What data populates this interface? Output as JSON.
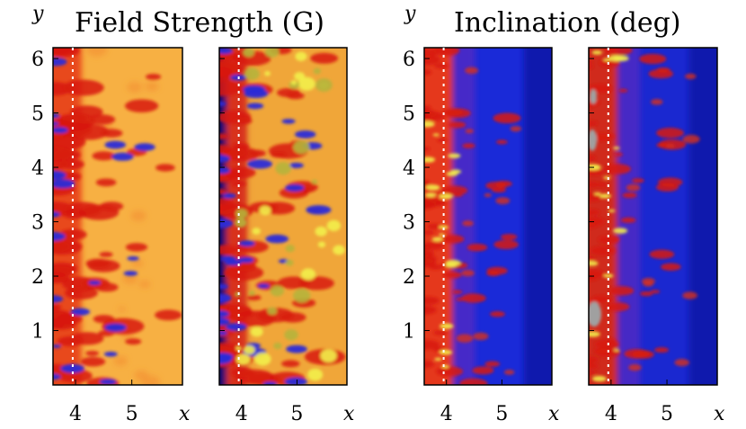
{
  "chart_data": {
    "type": "heatmap",
    "title_left": "Field Strength (G)",
    "title_right": "Inclination (deg)",
    "xlabel": "x",
    "ylabel": "y",
    "x_ticks": [
      "4",
      "5"
    ],
    "y_ticks": [
      "1",
      "2",
      "3",
      "4",
      "5",
      "6"
    ],
    "xlim": [
      3.6,
      5.9
    ],
    "ylim": [
      0,
      6.2
    ],
    "dashed_line_x": 3.95,
    "panels": [
      {
        "name": "field-strength-observed",
        "quantity": "field_strength",
        "base_color": "#f7b043",
        "left_color": "#e83a1a"
      },
      {
        "name": "field-strength-model",
        "quantity": "field_strength",
        "base_color": "#f0a23a",
        "left_color": "#1a1aa0"
      },
      {
        "name": "inclination-observed",
        "quantity": "inclination",
        "base_color": "#1a2ad8",
        "left_color": "#e5381b"
      },
      {
        "name": "inclination-model",
        "quantity": "inclination",
        "base_color": "#1a28d0",
        "left_color": "#d02a1a"
      }
    ],
    "colors": {
      "blue_dark": "#0a0a6e",
      "blue": "#2a2ad8",
      "red": "#d81a12",
      "orange": "#f7a73a",
      "yellow": "#f2f04a",
      "olive": "#b6b43a",
      "gray": "#a0a0a0"
    }
  }
}
